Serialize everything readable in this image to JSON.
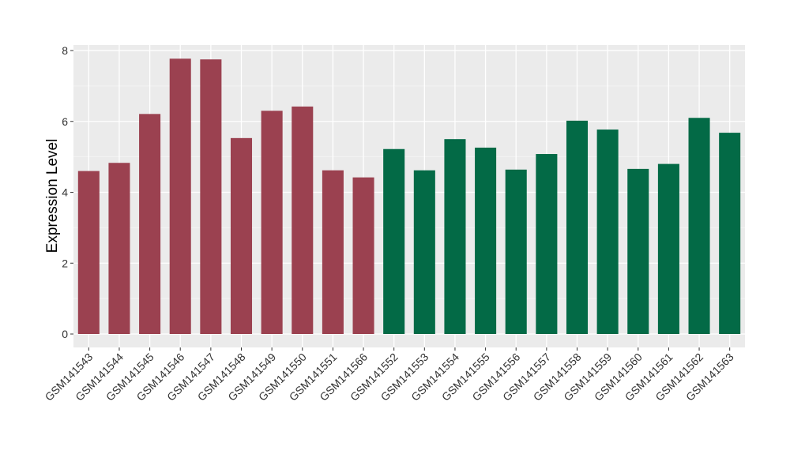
{
  "chart_data": {
    "type": "bar",
    "title": "",
    "xlabel": "",
    "ylabel": "Expression Level",
    "ylim": [
      0,
      8.2
    ],
    "yticks": [
      0,
      2,
      4,
      6,
      8
    ],
    "grid": true,
    "categories": [
      "GSM141543",
      "GSM141544",
      "GSM141545",
      "GSM141546",
      "GSM141547",
      "GSM141548",
      "GSM141549",
      "GSM141550",
      "GSM141551",
      "GSM141566",
      "GSM141552",
      "GSM141553",
      "GSM141554",
      "GSM141555",
      "GSM141556",
      "GSM141557",
      "GSM141558",
      "GSM141559",
      "GSM141560",
      "GSM141561",
      "GSM141562",
      "GSM141563"
    ],
    "values": [
      4.6,
      4.83,
      6.21,
      7.77,
      7.75,
      5.53,
      6.3,
      6.42,
      4.62,
      4.42,
      5.22,
      4.62,
      5.5,
      5.26,
      4.64,
      5.08,
      6.02,
      5.77,
      4.66,
      4.8,
      6.1,
      5.68
    ],
    "groups": [
      0,
      0,
      0,
      0,
      0,
      0,
      0,
      0,
      0,
      0,
      1,
      1,
      1,
      1,
      1,
      1,
      1,
      1,
      1,
      1,
      1,
      1
    ],
    "group_colors": [
      "#9b4150",
      "#036a46"
    ]
  }
}
